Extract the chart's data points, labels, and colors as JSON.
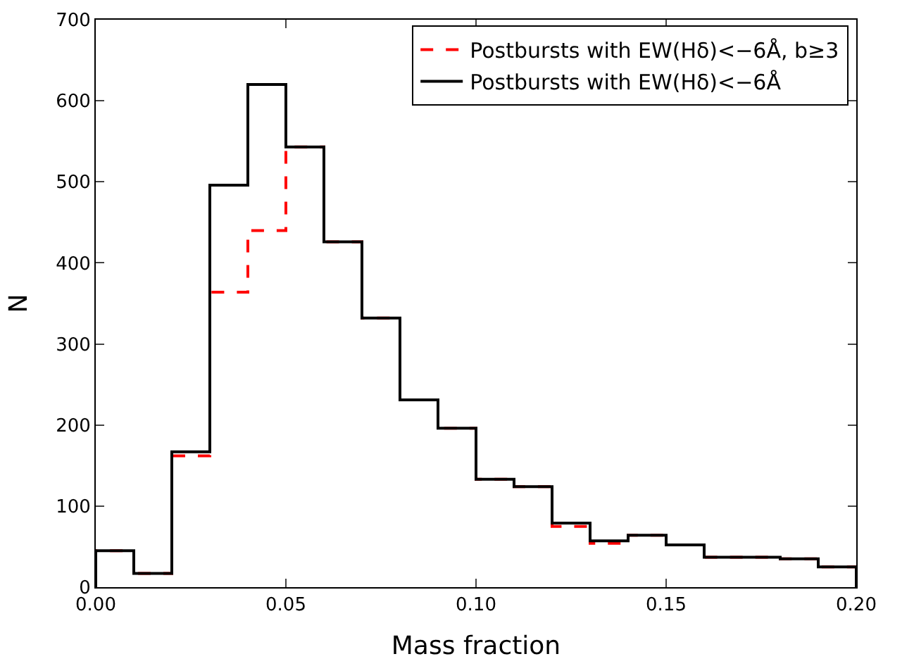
{
  "chart_data": {
    "type": "histogram",
    "xlabel": "Mass fraction",
    "ylabel": "N",
    "bins": [
      0.0,
      0.01,
      0.02,
      0.03,
      0.04,
      0.05,
      0.06,
      0.07,
      0.08,
      0.09,
      0.1,
      0.11,
      0.12,
      0.13,
      0.14,
      0.15,
      0.16,
      0.17,
      0.18,
      0.19,
      0.2
    ],
    "series": [
      {
        "name": "Postbursts with EW(Hδ)<−6Å, b≥3",
        "color": "#ff0000",
        "line_style": "dashed",
        "values": [
          45,
          17,
          162,
          364,
          440,
          543,
          426,
          332,
          231,
          196,
          133,
          124,
          75,
          54,
          64,
          52,
          37,
          37,
          35,
          25
        ]
      },
      {
        "name": "Postbursts with EW(Hδ)<−6Å",
        "color": "#000000",
        "line_style": "solid",
        "values": [
          45,
          17,
          167,
          496,
          620,
          543,
          426,
          332,
          231,
          196,
          133,
          124,
          79,
          57,
          64,
          52,
          37,
          37,
          35,
          25
        ]
      }
    ],
    "xlim": [
      0.0,
      0.2
    ],
    "xticks": [
      {
        "value": 0.0,
        "label": "0.00"
      },
      {
        "value": 0.05,
        "label": "0.05"
      },
      {
        "value": 0.1,
        "label": "0.10"
      },
      {
        "value": 0.15,
        "label": "0.15"
      },
      {
        "value": 0.2,
        "label": "0.20"
      }
    ],
    "ylim": [
      0,
      700
    ],
    "yticks": [
      0,
      100,
      200,
      300,
      400,
      500,
      600,
      700
    ],
    "legend": "top right"
  }
}
